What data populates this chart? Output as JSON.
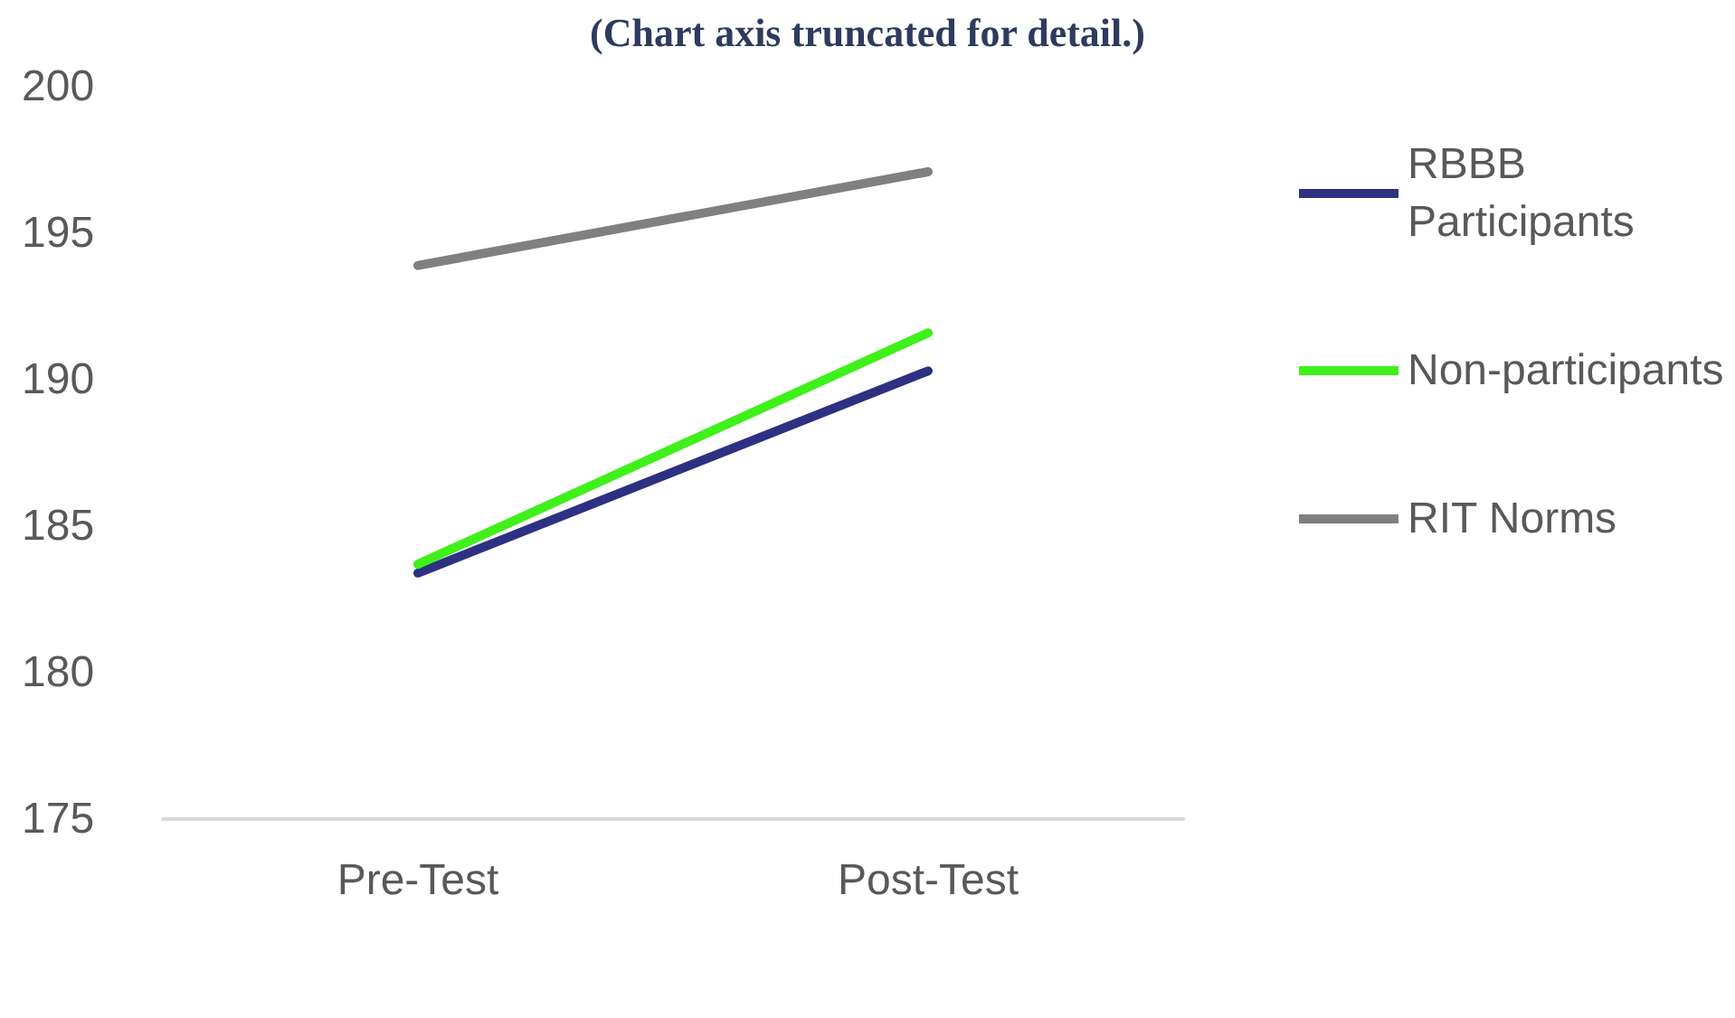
{
  "chart_data": {
    "type": "line",
    "title": "(Chart axis truncated for detail.)",
    "categories": [
      "Pre-Test",
      "Post-Test"
    ],
    "series": [
      {
        "name": "RBBB Participants",
        "color": "#2e3182",
        "values": [
          183.4,
          190.3
        ]
      },
      {
        "name": "Non-participants",
        "color": "#3ff01a",
        "values": [
          183.7,
          191.6
        ]
      },
      {
        "name": "RIT Norms",
        "color": "#808080",
        "values": [
          193.9,
          197.1
        ]
      }
    ],
    "ylim": [
      175,
      200
    ],
    "yticks": [
      175,
      180,
      185,
      190,
      195,
      200
    ],
    "grid": false,
    "legend": "right",
    "marker": "none",
    "line_style": "solid"
  }
}
